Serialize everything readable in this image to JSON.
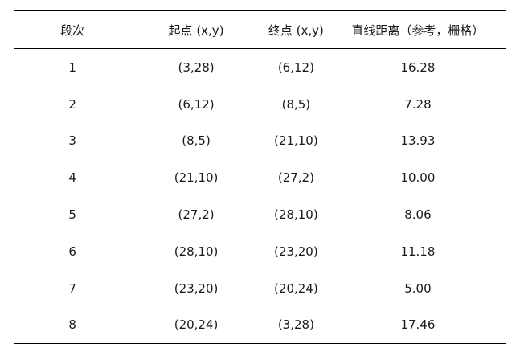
{
  "table": {
    "name": "path-segments-table",
    "headers": [
      "段次",
      "起点 (x,y)",
      "终点 (x,y)",
      "直线距离（参考，栅格）"
    ],
    "rows": [
      {
        "segment": "1",
        "start": "(3,28)",
        "end": "(6,12)",
        "distance": "16.28"
      },
      {
        "segment": "2",
        "start": "(6,12)",
        "end": "(8,5)",
        "distance": "7.28"
      },
      {
        "segment": "3",
        "start": "(8,5)",
        "end": "(21,10)",
        "distance": "13.93"
      },
      {
        "segment": "4",
        "start": "(21,10)",
        "end": "(27,2)",
        "distance": "10.00"
      },
      {
        "segment": "5",
        "start": "(27,2)",
        "end": "(28,10)",
        "distance": "8.06"
      },
      {
        "segment": "6",
        "start": "(28,10)",
        "end": "(23,20)",
        "distance": "11.18"
      },
      {
        "segment": "7",
        "start": "(23,20)",
        "end": "(20,24)",
        "distance": "5.00"
      },
      {
        "segment": "8",
        "start": "(20,24)",
        "end": "(3,28)",
        "distance": "17.46"
      }
    ],
    "colors": {
      "text": "#1a1a1a",
      "rule": "#000000",
      "background": "#ffffff"
    }
  }
}
